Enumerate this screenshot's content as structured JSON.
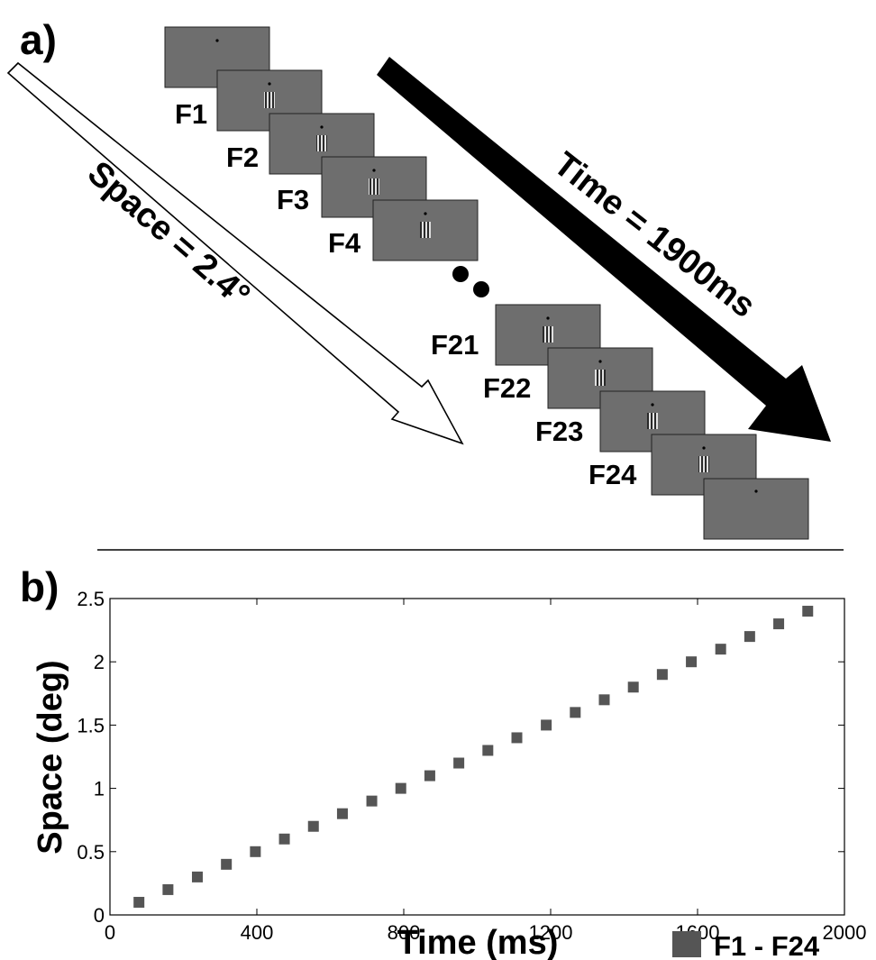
{
  "panel_a": {
    "label": "a)",
    "space_text": "Space = 2.4°",
    "time_text": "Time = 1900ms",
    "frame_labels": [
      "F1",
      "F2",
      "F3",
      "F4",
      "F21",
      "F22",
      "F23",
      "F24"
    ]
  },
  "panel_b": {
    "label": "b)"
  },
  "colors": {
    "frame_gray": "#6e6e6e",
    "marker": "#555555",
    "arrow_black": "#000000"
  },
  "chart_data": {
    "type": "scatter",
    "xlabel": "Time (ms)",
    "ylabel": "Space (deg)",
    "xlim": [
      0,
      2000
    ],
    "ylim": [
      0,
      2.5
    ],
    "xticks": [
      0,
      400,
      800,
      1200,
      1600,
      2000
    ],
    "yticks": [
      0,
      0.5,
      1,
      1.5,
      2,
      2.5
    ],
    "xtick_labels": [
      "0",
      "400",
      "800",
      "1200",
      "1600",
      "2000"
    ],
    "ytick_labels": [
      "0",
      "0.5",
      "1",
      "1.5",
      "2",
      "2.5"
    ],
    "grid": false,
    "legend_position": "bottom-right",
    "series": [
      {
        "name": "F1 - F24",
        "marker": "square",
        "x": [
          79,
          158,
          238,
          317,
          396,
          475,
          554,
          633,
          713,
          792,
          871,
          950,
          1029,
          1108,
          1188,
          1267,
          1346,
          1425,
          1504,
          1583,
          1663,
          1742,
          1821,
          1900
        ],
        "y": [
          0.1,
          0.2,
          0.3,
          0.4,
          0.5,
          0.6,
          0.7,
          0.8,
          0.9,
          1.0,
          1.1,
          1.2,
          1.3,
          1.4,
          1.5,
          1.6,
          1.7,
          1.8,
          1.9,
          2.0,
          2.1,
          2.2,
          2.3,
          2.4
        ]
      }
    ]
  }
}
